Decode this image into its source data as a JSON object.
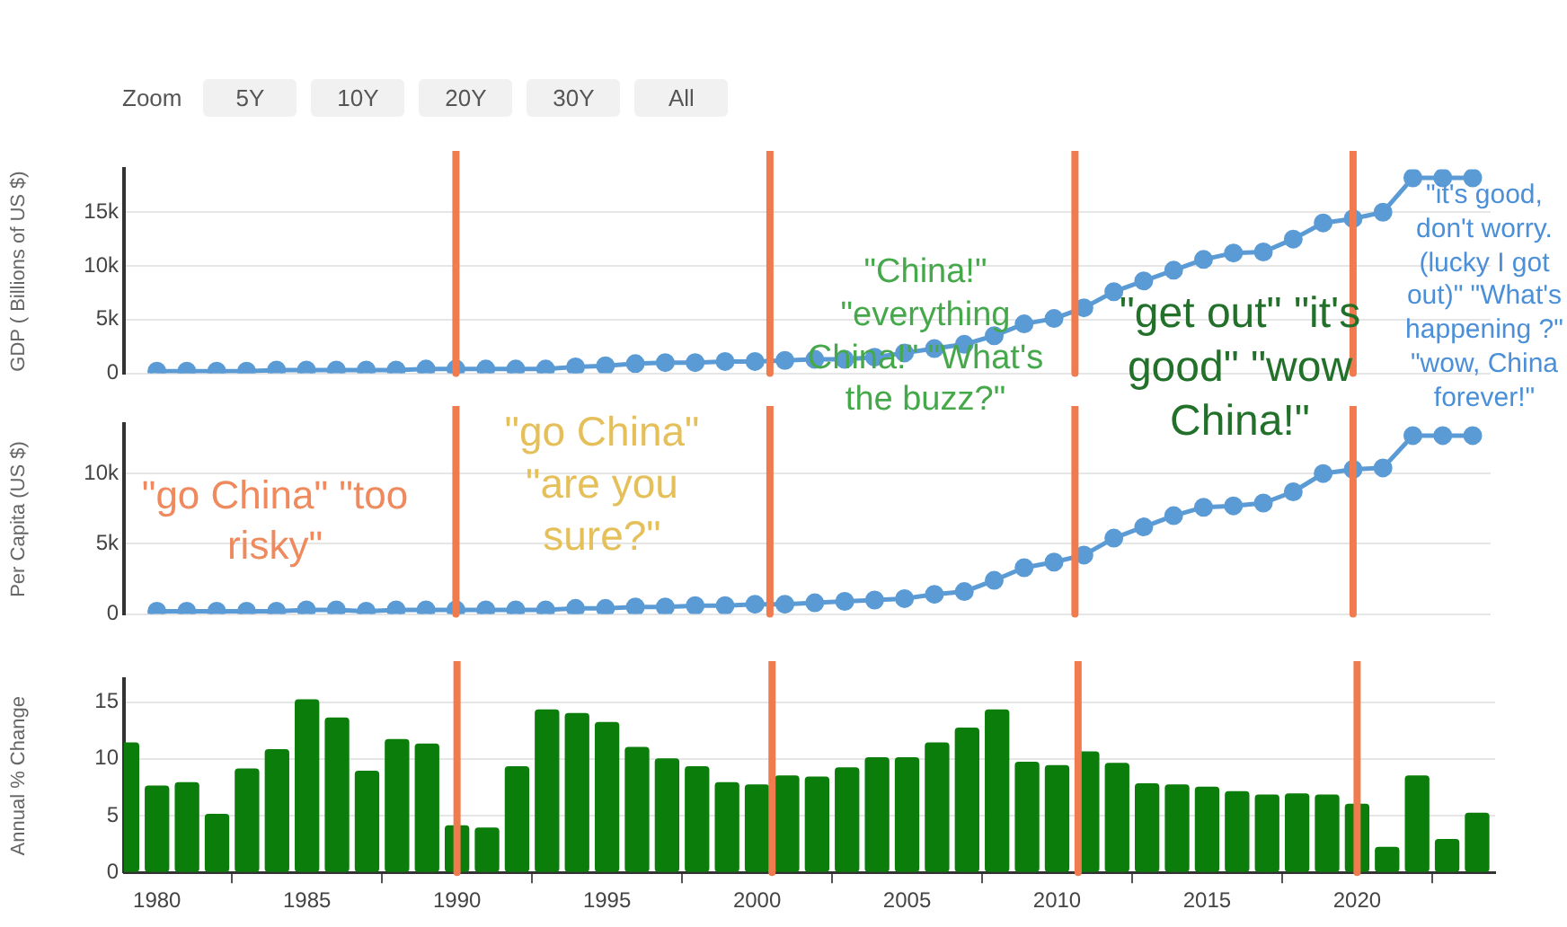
{
  "chart_data": [
    {
      "type": "other",
      "annotations": [
        "Zoom",
        "5Y",
        "10Y",
        "20Y",
        "30Y",
        "All"
      ]
    },
    {
      "type": "line",
      "ylabel": "GDP ( Billions of US $)",
      "x": [
        1980,
        1981,
        1982,
        1983,
        1984,
        1985,
        1986,
        1987,
        1988,
        1989,
        1990,
        1991,
        1992,
        1993,
        1994,
        1995,
        1996,
        1997,
        1998,
        1999,
        2000,
        2001,
        2002,
        2003,
        2004,
        2005,
        2006,
        2007,
        2008,
        2009,
        2010,
        2011,
        2012,
        2013,
        2014,
        2015,
        2016,
        2017,
        2018,
        2019,
        2020,
        2021,
        2022,
        2023,
        2024
      ],
      "values": [
        200,
        200,
        200,
        200,
        300,
        300,
        300,
        300,
        300,
        400,
        400,
        400,
        400,
        400,
        600,
        700,
        900,
        1000,
        1000,
        1100,
        1100,
        1200,
        1300,
        1300,
        1500,
        1900,
        2300,
        2700,
        3500,
        4600,
        5100,
        6100,
        7600,
        8600,
        9600,
        10600,
        11200,
        11300,
        12500,
        14000,
        14400,
        15000,
        18200,
        18200,
        18200
      ],
      "color": "#5b9bd5",
      "marker": "circle",
      "xlim": [
        1978.9,
        2024.6
      ],
      "xticks": [
        1980,
        1985,
        1990,
        1995,
        2000,
        2005,
        2010,
        2015,
        2020
      ],
      "ylim": [
        0,
        19000
      ],
      "yticks": [
        0,
        {
          "value": 5000,
          "label": "5k"
        },
        {
          "value": 10000,
          "label": "10k"
        },
        {
          "value": 15000,
          "label": "15k"
        }
      ],
      "tick_labels": "y",
      "grid": "y",
      "legend": false,
      "ref_lines": [
        {
          "axis": "x",
          "value": 1990,
          "color": "#f07b4f"
        },
        {
          "axis": "x",
          "value": 2000.5,
          "color": "#f07b4f"
        },
        {
          "axis": "x",
          "value": 2010.7,
          "color": "#f07b4f"
        },
        {
          "axis": "x",
          "value": 2020,
          "color": "#f07b4f"
        }
      ]
    },
    {
      "type": "line",
      "ylabel": "Per Capita (US $)",
      "x": [
        1980,
        1981,
        1982,
        1983,
        1984,
        1985,
        1986,
        1987,
        1988,
        1989,
        1990,
        1991,
        1992,
        1993,
        1994,
        1995,
        1996,
        1997,
        1998,
        1999,
        2000,
        2001,
        2002,
        2003,
        2004,
        2005,
        2006,
        2007,
        2008,
        2009,
        2010,
        2011,
        2012,
        2013,
        2014,
        2015,
        2016,
        2017,
        2018,
        2019,
        2020,
        2021,
        2022,
        2023,
        2024
      ],
      "values": [
        200,
        200,
        200,
        200,
        200,
        300,
        300,
        200,
        300,
        300,
        300,
        300,
        300,
        300,
        400,
        400,
        500,
        500,
        600,
        600,
        700,
        700,
        800,
        900,
        1000,
        1100,
        1400,
        1600,
        2400,
        3300,
        3700,
        4200,
        5400,
        6200,
        7000,
        7600,
        7700,
        7900,
        8700,
        10000,
        10300,
        10400,
        12700,
        12700,
        12700
      ],
      "color": "#5b9bd5",
      "marker": "circle",
      "xlim": [
        1978.9,
        2024.6
      ],
      "xticks": [
        1980,
        1985,
        1990,
        1995,
        2000,
        2005,
        2010,
        2015,
        2020
      ],
      "ylim": [
        0,
        13500
      ],
      "yticks": [
        0,
        {
          "value": 5000,
          "label": "5k"
        },
        {
          "value": 10000,
          "label": "10k"
        }
      ],
      "tick_labels": "y",
      "grid": "y",
      "legend": false,
      "ref_lines": [
        {
          "axis": "x",
          "value": 1990,
          "color": "#f07b4f"
        },
        {
          "axis": "x",
          "value": 2000.5,
          "color": "#f07b4f"
        },
        {
          "axis": "x",
          "value": 2010.7,
          "color": "#f07b4f"
        },
        {
          "axis": "x",
          "value": 2020,
          "color": "#f07b4f"
        }
      ],
      "annotations": [
        "\"go China\" \"too risky\"",
        "\"go China\" \"are you sure?\"",
        "\"China!\" \"everything China!\" \"What's the buzz?\"",
        "\"get out\" \"it's good\" \"wow China!\"",
        "\"it's good, don't worry. (lucky I got out)\" \"What's happening ?\" \"wow, China forever!\""
      ]
    },
    {
      "type": "bar",
      "ylabel": "Annual % Change",
      "x": [
        1979,
        1980,
        1981,
        1982,
        1983,
        1984,
        1985,
        1986,
        1987,
        1988,
        1989,
        1990,
        1991,
        1992,
        1993,
        1994,
        1995,
        1996,
        1997,
        1998,
        1999,
        2000,
        2001,
        2002,
        2003,
        2004,
        2005,
        2006,
        2007,
        2008,
        2009,
        2010,
        2011,
        2012,
        2013,
        2014,
        2015,
        2016,
        2017,
        2018,
        2019,
        2020,
        2021,
        2022,
        2023,
        2024
      ],
      "values": [
        11.4,
        7.6,
        7.9,
        5.1,
        9.1,
        10.8,
        15.2,
        13.6,
        8.9,
        11.7,
        11.3,
        4.1,
        3.9,
        9.3,
        14.3,
        14.0,
        13.2,
        11.0,
        10.0,
        9.3,
        7.9,
        7.7,
        8.5,
        8.4,
        9.2,
        10.1,
        10.1,
        11.4,
        12.7,
        14.3,
        9.7,
        9.4,
        10.6,
        9.6,
        7.8,
        7.7,
        7.5,
        7.1,
        6.8,
        6.9,
        6.8,
        6.0,
        2.2,
        8.5,
        2.9,
        5.2
      ],
      "color": "#0a7d0a",
      "xlim": [
        1978.9,
        2024.6
      ],
      "ylim": [
        0,
        17
      ],
      "xticks": [
        1980,
        1985,
        1990,
        1995,
        2000,
        2005,
        2010,
        2015,
        2020
      ],
      "yticks": [
        0,
        5,
        10,
        15
      ],
      "grid": "y",
      "legend": false,
      "ref_lines": [
        {
          "axis": "x",
          "value": 1990,
          "color": "#f07b4f"
        },
        {
          "axis": "x",
          "value": 2000.5,
          "color": "#f07b4f"
        },
        {
          "axis": "x",
          "value": 2010.7,
          "color": "#f07b4f"
        },
        {
          "axis": "x",
          "value": 2020,
          "color": "#f07b4f"
        }
      ]
    }
  ]
}
